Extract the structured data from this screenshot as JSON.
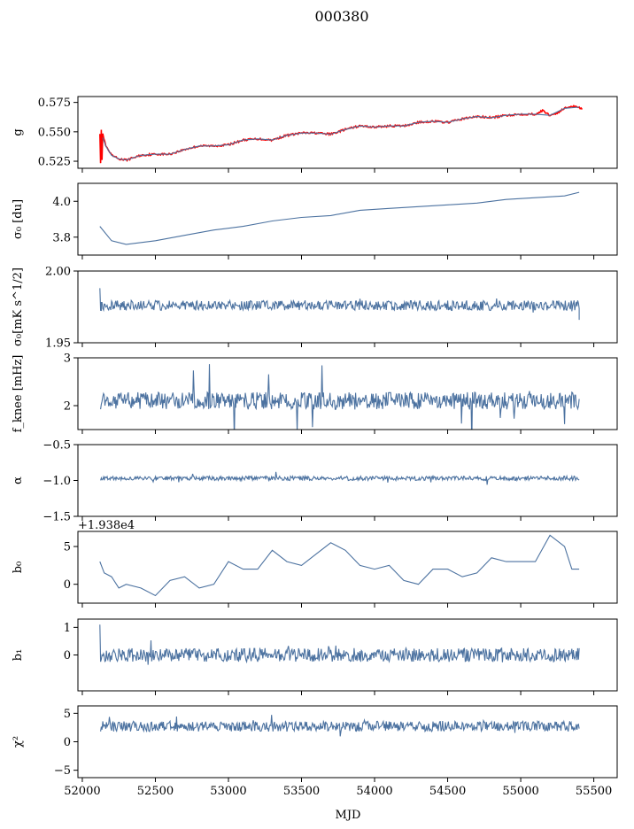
{
  "figure": {
    "title": "000380",
    "xlabel": "MJD"
  },
  "chart_data": [
    {
      "type": "line",
      "ylabel": "g",
      "xlim": [
        51970,
        55660
      ],
      "ylim": [
        0.519,
        0.58
      ],
      "yticks": [
        0.525,
        0.55,
        0.575
      ],
      "ytick_labels": [
        "0.525",
        "0.550",
        "0.575"
      ],
      "series": [
        {
          "color": "#ff0000",
          "points": [
            [
              52120,
              0.549
            ],
            [
              52125,
              0.524
            ],
            [
              52130,
              0.551
            ],
            [
              52135,
              0.526
            ],
            [
              52140,
              0.548
            ],
            [
              52160,
              0.538
            ],
            [
              52200,
              0.53
            ],
            [
              52250,
              0.527
            ],
            [
              52300,
              0.526
            ],
            [
              52350,
              0.528
            ],
            [
              52400,
              0.53
            ],
            [
              52500,
              0.531
            ],
            [
              52600,
              0.531
            ],
            [
              52700,
              0.535
            ],
            [
              52800,
              0.538
            ],
            [
              52900,
              0.538
            ],
            [
              53000,
              0.539
            ],
            [
              53100,
              0.543
            ],
            [
              53200,
              0.544
            ],
            [
              53300,
              0.543
            ],
            [
              53400,
              0.547
            ],
            [
              53500,
              0.549
            ],
            [
              53600,
              0.549
            ],
            [
              53700,
              0.548
            ],
            [
              53800,
              0.552
            ],
            [
              53900,
              0.555
            ],
            [
              54000,
              0.554
            ],
            [
              54100,
              0.555
            ],
            [
              54200,
              0.555
            ],
            [
              54300,
              0.558
            ],
            [
              54400,
              0.559
            ],
            [
              54500,
              0.558
            ],
            [
              54600,
              0.561
            ],
            [
              54700,
              0.563
            ],
            [
              54800,
              0.562
            ],
            [
              54900,
              0.564
            ],
            [
              55000,
              0.565
            ],
            [
              55100,
              0.565
            ],
            [
              55150,
              0.568
            ],
            [
              55200,
              0.564
            ],
            [
              55250,
              0.566
            ],
            [
              55300,
              0.57
            ],
            [
              55350,
              0.572
            ],
            [
              55400,
              0.571
            ],
            [
              55420,
              0.569
            ]
          ]
        },
        {
          "color": "#4c72a0",
          "points": [
            [
              52140,
              0.545
            ],
            [
              52160,
              0.538
            ],
            [
              52200,
              0.53
            ],
            [
              52250,
              0.527
            ],
            [
              52300,
              0.526
            ],
            [
              52350,
              0.528
            ],
            [
              52400,
              0.53
            ],
            [
              52500,
              0.531
            ],
            [
              52600,
              0.531
            ],
            [
              52700,
              0.535
            ],
            [
              52800,
              0.538
            ],
            [
              52900,
              0.538
            ],
            [
              53000,
              0.539
            ],
            [
              53100,
              0.543
            ],
            [
              53200,
              0.544
            ],
            [
              53300,
              0.543
            ],
            [
              53400,
              0.547
            ],
            [
              53500,
              0.549
            ],
            [
              53600,
              0.549
            ],
            [
              53700,
              0.548
            ],
            [
              53800,
              0.552
            ],
            [
              53900,
              0.555
            ],
            [
              54000,
              0.554
            ],
            [
              54100,
              0.555
            ],
            [
              54200,
              0.555
            ],
            [
              54300,
              0.558
            ],
            [
              54400,
              0.559
            ],
            [
              54500,
              0.558
            ],
            [
              54600,
              0.561
            ],
            [
              54700,
              0.563
            ],
            [
              54800,
              0.562
            ],
            [
              54900,
              0.564
            ],
            [
              55000,
              0.565
            ],
            [
              55100,
              0.565
            ],
            [
              55200,
              0.564
            ],
            [
              55300,
              0.57
            ],
            [
              55400,
              0.571
            ]
          ]
        }
      ]
    },
    {
      "type": "line",
      "ylabel": "σ₀ [du]",
      "xlim": [
        51970,
        55660
      ],
      "ylim": [
        3.7,
        4.1
      ],
      "yticks": [
        3.8,
        4.0
      ],
      "ytick_labels": [
        "3.8",
        "4.0"
      ],
      "series": [
        {
          "color": "#4c72a0",
          "points": [
            [
              52120,
              3.86
            ],
            [
              52200,
              3.78
            ],
            [
              52300,
              3.76
            ],
            [
              52500,
              3.78
            ],
            [
              52700,
              3.81
            ],
            [
              52900,
              3.84
            ],
            [
              53100,
              3.86
            ],
            [
              53300,
              3.89
            ],
            [
              53500,
              3.91
            ],
            [
              53700,
              3.92
            ],
            [
              53900,
              3.95
            ],
            [
              54100,
              3.96
            ],
            [
              54300,
              3.97
            ],
            [
              54500,
              3.98
            ],
            [
              54700,
              3.99
            ],
            [
              54900,
              4.01
            ],
            [
              55100,
              4.02
            ],
            [
              55300,
              4.03
            ],
            [
              55400,
              4.05
            ]
          ]
        }
      ]
    },
    {
      "type": "line",
      "ylabel": "σ₀[mK s^1/2]",
      "xlim": [
        51970,
        55660
      ],
      "ylim": [
        1.95,
        2.0
      ],
      "yticks": [
        1.95,
        2.0
      ],
      "ytick_labels": [
        "1.95",
        "2.00"
      ],
      "series": [
        {
          "color": "#4c72a0",
          "mean": 1.976,
          "noise": 0.0035,
          "spike": 0.004,
          "points": [
            [
              52120,
              1.988
            ],
            [
              52130,
              1.978
            ],
            [
              55350,
              1.972
            ],
            [
              55400,
              1.966
            ]
          ]
        }
      ]
    },
    {
      "type": "line",
      "ylabel": "f_knee [mHz]",
      "xlim": [
        51970,
        55660
      ],
      "ylim": [
        1.5,
        3.0
      ],
      "yticks": [
        2,
        3
      ],
      "ytick_labels": [
        "2",
        "3"
      ],
      "series": [
        {
          "color": "#4c72a0",
          "mean": 2.1,
          "noise": 0.18,
          "spike": 0.9
        }
      ]
    },
    {
      "type": "line",
      "ylabel": "α",
      "xlim": [
        51970,
        55660
      ],
      "ylim": [
        -1.5,
        -0.5
      ],
      "yticks": [
        -1.5,
        -1.0,
        -0.5
      ],
      "ytick_labels": [
        "−1.5",
        "−1.0",
        "−0.5"
      ],
      "series": [
        {
          "color": "#4c72a0",
          "mean": -0.97,
          "noise": 0.03,
          "spike": 0.08
        }
      ]
    },
    {
      "type": "line",
      "ylabel": "b₀",
      "offset_label": "+1.938e4",
      "xlim": [
        51970,
        55660
      ],
      "ylim": [
        -2.5,
        7.0
      ],
      "yticks": [
        0,
        5
      ],
      "ytick_labels": [
        "0",
        "5"
      ],
      "series": [
        {
          "color": "#4c72a0",
          "points": [
            [
              52120,
              3.0
            ],
            [
              52150,
              1.5
            ],
            [
              52200,
              1.0
            ],
            [
              52250,
              -0.5
            ],
            [
              52300,
              0.0
            ],
            [
              52400,
              -0.5
            ],
            [
              52500,
              -1.5
            ],
            [
              52600,
              0.5
            ],
            [
              52700,
              1.0
            ],
            [
              52800,
              -0.5
            ],
            [
              52900,
              0.0
            ],
            [
              53000,
              3.0
            ],
            [
              53100,
              2.0
            ],
            [
              53200,
              2.0
            ],
            [
              53300,
              4.5
            ],
            [
              53400,
              3.0
            ],
            [
              53500,
              2.5
            ],
            [
              53600,
              4.0
            ],
            [
              53700,
              5.5
            ],
            [
              53800,
              4.5
            ],
            [
              53900,
              2.5
            ],
            [
              54000,
              2.0
            ],
            [
              54100,
              2.5
            ],
            [
              54200,
              0.5
            ],
            [
              54300,
              0.0
            ],
            [
              54400,
              2.0
            ],
            [
              54500,
              2.0
            ],
            [
              54600,
              1.0
            ],
            [
              54700,
              1.5
            ],
            [
              54800,
              3.5
            ],
            [
              54900,
              3.0
            ],
            [
              55000,
              3.0
            ],
            [
              55100,
              3.0
            ],
            [
              55200,
              6.5
            ],
            [
              55300,
              5.0
            ],
            [
              55350,
              2.0
            ],
            [
              55400,
              2.0
            ]
          ]
        }
      ]
    },
    {
      "type": "line",
      "ylabel": "b₁",
      "xlim": [
        51970,
        55660
      ],
      "ylim": [
        -1.3,
        1.3
      ],
      "yticks": [
        0,
        1
      ],
      "ytick_labels": [
        "0",
        "1"
      ],
      "series": [
        {
          "color": "#4c72a0",
          "mean": 0.0,
          "noise": 0.25,
          "spike": 0.5,
          "points": [
            [
              52120,
              1.1
            ]
          ]
        }
      ]
    },
    {
      "type": "line",
      "ylabel": "χ²",
      "xlim": [
        51970,
        55660
      ],
      "ylim": [
        -6.3,
        6.3
      ],
      "yticks": [
        -5,
        0,
        5
      ],
      "ytick_labels": [
        "−5",
        "0",
        "5"
      ],
      "xticks": [
        52000,
        52500,
        53000,
        53500,
        54000,
        54500,
        55000,
        55500
      ],
      "xtick_labels": [
        "52000",
        "52500",
        "53000",
        "53500",
        "54000",
        "54500",
        "55000",
        "55500"
      ],
      "series": [
        {
          "color": "#4c72a0",
          "mean": 2.7,
          "noise": 0.9,
          "spike": 1.5
        }
      ]
    }
  ]
}
